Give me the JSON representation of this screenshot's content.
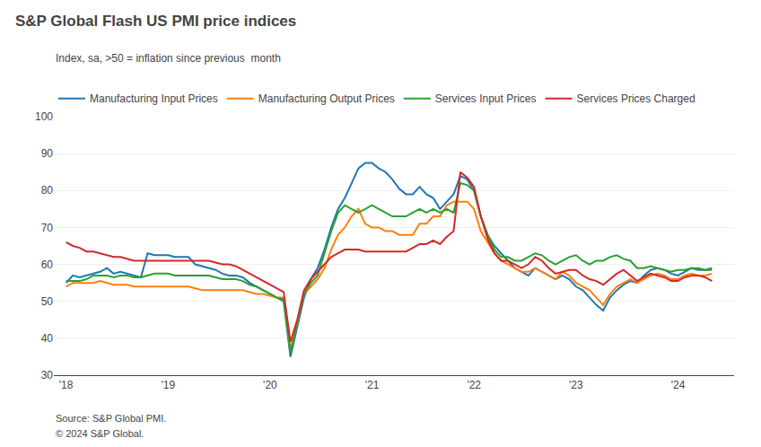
{
  "chart_data": {
    "type": "line",
    "title": "S&P Global Flash US PMI price indices",
    "subtitle": "Index, sa, >50 = inflation since previous  month",
    "annotations": [
      "Source: S&P Global PMI.",
      "© 2024 S&P Global."
    ],
    "x": [
      2018.0,
      2018.0667,
      2018.1333,
      2018.2,
      2018.2667,
      2018.3333,
      2018.4,
      2018.4666,
      2018.5333,
      2018.6,
      2018.6666,
      2018.7333,
      2018.8,
      2018.8666,
      2018.9333,
      2018.9999,
      2019.0666,
      2019.1333,
      2019.1999,
      2019.2666,
      2019.3333,
      2019.3999,
      2019.4666,
      2019.5333,
      2019.5999,
      2019.6666,
      2019.7332,
      2019.7999,
      2019.8666,
      2019.9332,
      2019.9999,
      2020.0666,
      2020.1332,
      2020.1999,
      2020.2665,
      2020.3332,
      2020.3999,
      2020.4665,
      2020.5332,
      2020.5999,
      2020.6665,
      2020.7332,
      2020.7999,
      2020.8665,
      2020.9332,
      2020.9998,
      2021.0665,
      2021.1332,
      2021.1998,
      2021.2665,
      2021.3332,
      2021.3998,
      2021.4665,
      2021.5331,
      2021.5998,
      2021.6665,
      2021.7331,
      2021.7998,
      2021.8665,
      2021.9331,
      2021.9998,
      2022.0665,
      2022.1331,
      2022.1998,
      2022.2664,
      2022.3331,
      2022.3998,
      2022.4664,
      2022.5331,
      2022.5998,
      2022.6664,
      2022.7331,
      2022.7997,
      2022.8664,
      2022.9331,
      2022.9997,
      2023.0664,
      2023.1331,
      2023.1997,
      2023.2664,
      2023.3331,
      2023.3997,
      2023.4664,
      2023.533,
      2023.5997,
      2023.6664,
      2023.733,
      2023.7997,
      2023.8664,
      2023.933,
      2023.9997,
      2024.0663,
      2024.133,
      2024.1997,
      2024.2663,
      2024.333
    ],
    "series": [
      {
        "name": "Manufacturing Input Prices",
        "values": [
          55.0,
          57.0,
          56.5,
          57.0,
          57.5,
          58.0,
          59.0,
          57.5,
          58.0,
          57.5,
          57.0,
          56.5,
          63.0,
          62.5,
          62.5,
          62.5,
          62.0,
          62.0,
          62.0,
          60.0,
          59.5,
          59.0,
          58.5,
          57.5,
          57.0,
          57.0,
          56.5,
          55.0,
          54.0,
          53.0,
          52.0,
          51.0,
          50.0,
          35.0,
          43.0,
          51.0,
          56.0,
          59.0,
          64.0,
          70.0,
          75.0,
          78.0,
          82.0,
          86.0,
          87.5,
          87.5,
          86.0,
          85.0,
          83.0,
          80.5,
          79.0,
          79.0,
          81.0,
          79.0,
          78.0,
          75.0,
          77.0,
          79.0,
          84.0,
          83.0,
          80.0,
          73.0,
          68.0,
          65.0,
          63.0,
          61.0,
          59.0,
          58.0,
          57.0,
          59.0,
          58.0,
          57.0,
          56.0,
          57.0,
          56.0,
          54.0,
          53.0,
          51.0,
          49.0,
          47.5,
          51.0,
          53.0,
          54.5,
          55.5,
          55.0,
          57.0,
          58.5,
          59.0,
          58.5,
          57.5,
          57.0,
          58.0,
          59.0,
          58.5,
          58.5,
          59.0
        ]
      },
      {
        "name": "Manufacturing Output Prices",
        "values": [
          54.0,
          55.0,
          55.0,
          55.0,
          55.0,
          55.5,
          55.0,
          54.5,
          54.5,
          54.5,
          54.0,
          54.0,
          54.0,
          54.0,
          54.0,
          54.0,
          54.0,
          54.0,
          54.0,
          53.5,
          53.0,
          53.0,
          53.0,
          53.0,
          53.0,
          53.0,
          53.0,
          52.5,
          52.0,
          52.0,
          51.5,
          51.0,
          51.0,
          37.0,
          44.0,
          52.0,
          54.0,
          56.0,
          59.0,
          64.0,
          68.0,
          70.0,
          73.0,
          75.0,
          71.0,
          70.0,
          70.0,
          69.0,
          69.0,
          68.0,
          68.0,
          68.0,
          71.0,
          71.0,
          73.0,
          73.0,
          76.0,
          77.0,
          77.0,
          77.0,
          75.0,
          69.0,
          66.0,
          63.0,
          61.0,
          60.0,
          59.0,
          58.0,
          58.0,
          59.0,
          58.0,
          57.0,
          56.0,
          58.0,
          57.0,
          55.0,
          54.0,
          53.0,
          51.0,
          49.0,
          52.0,
          54.0,
          55.0,
          56.0,
          55.0,
          56.0,
          57.0,
          57.5,
          57.0,
          56.0,
          56.0,
          57.0,
          57.5,
          57.0,
          57.0,
          57.5
        ]
      },
      {
        "name": "Services Input Prices",
        "values": [
          55.5,
          55.5,
          55.5,
          56.0,
          57.0,
          57.0,
          57.0,
          56.5,
          57.0,
          57.0,
          56.5,
          56.5,
          57.0,
          57.5,
          57.5,
          57.5,
          57.0,
          57.0,
          57.0,
          57.0,
          57.0,
          57.0,
          56.5,
          56.0,
          56.0,
          56.0,
          55.5,
          54.5,
          54.0,
          53.0,
          52.0,
          51.0,
          50.5,
          36.0,
          44.0,
          52.0,
          55.0,
          57.0,
          63.0,
          69.0,
          74.0,
          76.0,
          75.0,
          74.0,
          75.0,
          76.0,
          75.0,
          74.0,
          73.0,
          73.0,
          73.0,
          74.0,
          75.0,
          74.0,
          75.0,
          74.0,
          75.0,
          74.0,
          82.0,
          81.5,
          80.0,
          73.0,
          68.0,
          64.0,
          62.0,
          62.0,
          61.0,
          61.0,
          62.0,
          63.0,
          62.5,
          61.0,
          60.0,
          61.0,
          62.0,
          62.5,
          61.0,
          60.0,
          61.0,
          61.0,
          62.0,
          62.5,
          61.5,
          61.0,
          59.0,
          59.0,
          59.5,
          59.0,
          58.5,
          58.0,
          58.5,
          58.5,
          59.0,
          59.0,
          58.5,
          58.5
        ]
      },
      {
        "name": "Services Prices Charged",
        "values": [
          66.0,
          65.0,
          64.5,
          63.5,
          63.5,
          63.0,
          62.5,
          62.0,
          62.0,
          61.5,
          61.0,
          61.0,
          61.0,
          61.0,
          61.0,
          61.0,
          61.0,
          61.0,
          61.0,
          61.0,
          61.0,
          61.0,
          60.5,
          60.0,
          60.0,
          59.5,
          58.5,
          57.5,
          56.5,
          55.5,
          54.5,
          53.5,
          52.5,
          39.0,
          45.0,
          53.0,
          56.0,
          58.0,
          60.0,
          62.0,
          63.0,
          64.0,
          64.0,
          64.0,
          63.5,
          63.5,
          63.5,
          63.5,
          63.5,
          63.5,
          63.5,
          64.5,
          65.5,
          65.5,
          66.5,
          65.5,
          67.5,
          69.0,
          85.0,
          83.5,
          81.0,
          73.0,
          67.0,
          63.0,
          61.0,
          61.0,
          60.0,
          59.0,
          60.0,
          62.0,
          61.0,
          59.0,
          57.5,
          58.0,
          58.5,
          58.5,
          57.0,
          56.0,
          55.5,
          54.5,
          56.0,
          57.5,
          58.5,
          57.0,
          55.5,
          56.5,
          57.5,
          57.0,
          56.5,
          55.5,
          55.5,
          56.5,
          57.0,
          57.0,
          56.5,
          55.5
        ]
      }
    ],
    "xlim": [
      2017.88,
      2024.55
    ],
    "xticks": [
      {
        "value": 2018,
        "label": "'18"
      },
      {
        "value": 2019,
        "label": "'19"
      },
      {
        "value": 2020,
        "label": "'20"
      },
      {
        "value": 2021,
        "label": "'21"
      },
      {
        "value": 2022,
        "label": "'22"
      },
      {
        "value": 2023,
        "label": "'23"
      },
      {
        "value": 2024,
        "label": "'24"
      }
    ],
    "ylim": [
      30,
      100
    ],
    "yticks": [
      30,
      40,
      50,
      60,
      70,
      80,
      90,
      100
    ],
    "grid": "y",
    "legend": "top"
  }
}
